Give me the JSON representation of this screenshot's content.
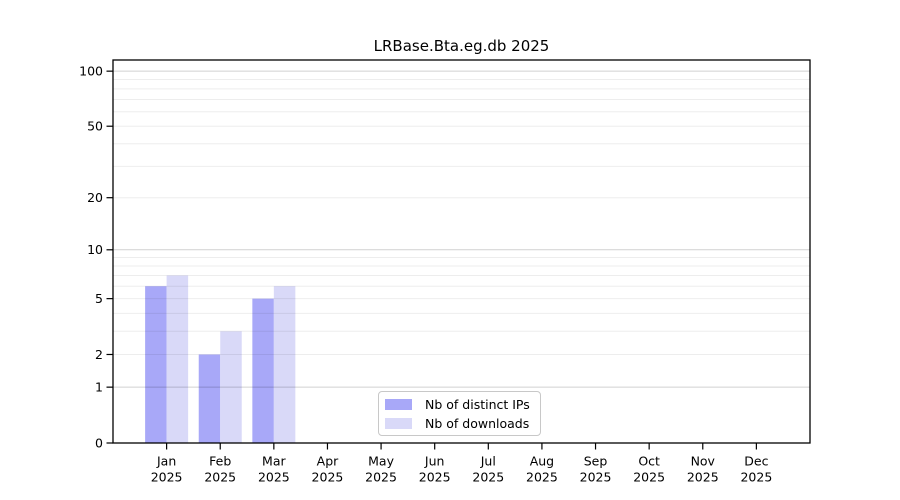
{
  "chart_data": {
    "type": "bar",
    "title": "LRBase.Bta.eg.db 2025",
    "categories": [
      "Jan",
      "Feb",
      "Mar",
      "Apr",
      "May",
      "Jun",
      "Jul",
      "Aug",
      "Sep",
      "Oct",
      "Nov",
      "Dec"
    ],
    "x_axis": {
      "year_label": "2025"
    },
    "y_axis": {
      "scale": "log1p",
      "ticks": [
        0,
        1,
        2,
        5,
        10,
        20,
        50,
        100
      ],
      "major_gridlines": [
        1,
        10,
        100
      ],
      "minor_gridlines": [
        2,
        3,
        4,
        5,
        6,
        7,
        8,
        9,
        20,
        30,
        40,
        50,
        60,
        70,
        80,
        90
      ],
      "ylim": [
        0,
        115
      ]
    },
    "series": [
      {
        "name": "Nb of distinct IPs",
        "color": "#a8a8f8",
        "values": [
          6,
          2,
          5,
          0,
          0,
          0,
          0,
          0,
          0,
          0,
          0,
          0
        ]
      },
      {
        "name": "Nb of downloads",
        "color": "#d9d9f8",
        "values": [
          7,
          3,
          6,
          0,
          0,
          0,
          0,
          0,
          0,
          0,
          0,
          0
        ]
      }
    ],
    "legend": {
      "position": "lower center",
      "entries": [
        "Nb of distinct IPs",
        "Nb of downloads"
      ]
    },
    "grid": true,
    "frame_color": "#000000"
  }
}
